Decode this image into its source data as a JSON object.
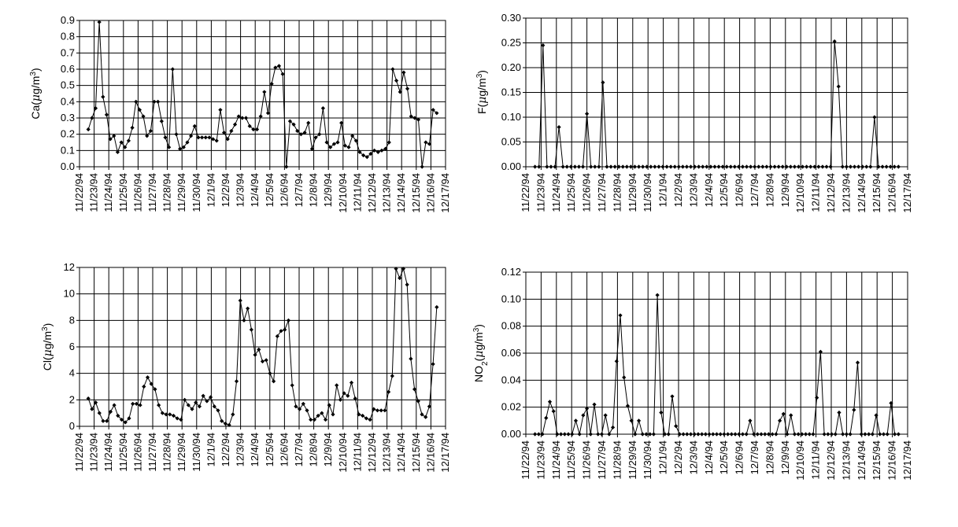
{
  "chart_data": [
    {
      "type": "line",
      "ylabel_main": "Ca(",
      "ylabel_mu": "μ",
      "ylabel_unit": "g/m",
      "ylabel_sup": "3",
      "ylabel_sub": "",
      "ylabel_close": ")",
      "ylim": [
        0,
        0.9
      ],
      "yticks": [
        "0.0",
        "0.1",
        "0.2",
        "0.3",
        "0.4",
        "0.5",
        "0.6",
        "0.7",
        "0.8",
        "0.9"
      ],
      "xticks": [
        "11/22/94",
        "11/23/94",
        "11/24/94",
        "11/25/94",
        "11/26/94",
        "11/27/94",
        "11/28/94",
        "11/29/94",
        "11/30/94",
        "12/1/94",
        "12/2/94",
        "12/3/94",
        "12/4/94",
        "12/5/94",
        "12/6/94",
        "12/7/94",
        "12/8/94",
        "12/9/94",
        "12/10/94",
        "12/11/94",
        "12/12/94",
        "12/13/94",
        "12/14/94",
        "12/15/94",
        "12/16/94",
        "12/17/94"
      ],
      "grid": "on",
      "values": [
        0.23,
        0.3,
        0.36,
        0.89,
        0.43,
        0.32,
        0.17,
        0.19,
        0.09,
        0.15,
        0.12,
        0.16,
        0.24,
        0.4,
        0.35,
        0.31,
        0.19,
        0.22,
        0.4,
        0.4,
        0.28,
        0.18,
        0.12,
        0.6,
        0.2,
        0.11,
        0.12,
        0.15,
        0.19,
        0.25,
        0.18,
        0.18,
        0.18,
        0.18,
        0.17,
        0.16,
        0.35,
        0.21,
        0.17,
        0.22,
        0.26,
        0.31,
        0.3,
        0.3,
        0.25,
        0.23,
        0.23,
        0.31,
        0.46,
        0.33,
        0.51,
        0.61,
        0.62,
        0.57,
        0.0,
        0.28,
        0.26,
        0.22,
        0.2,
        0.21,
        0.27,
        0.11,
        0.18,
        0.2,
        0.36,
        0.15,
        0.12,
        0.14,
        0.15,
        0.27,
        0.13,
        0.12,
        0.19,
        0.16,
        0.09,
        0.07,
        0.06,
        0.08,
        0.1,
        0.09,
        0.1,
        0.11,
        0.15,
        0.6,
        0.53,
        0.46,
        0.58,
        0.48,
        0.31,
        0.3,
        0.29,
        0.0,
        0.15,
        0.14,
        0.35,
        0.33
      ]
    },
    {
      "type": "line",
      "ylabel_main": "F(",
      "ylabel_mu": "μ",
      "ylabel_unit": "g/m",
      "ylabel_sup": "3",
      "ylabel_sub": "",
      "ylabel_close": ")",
      "ylim": [
        0,
        0.3
      ],
      "yticks": [
        "0.00",
        "0.05",
        "0.10",
        "0.15",
        "0.20",
        "0.25",
        "0.30"
      ],
      "xticks": [
        "11/22/94",
        "11/23/94",
        "11/24/94",
        "11/25/94",
        "11/26/94",
        "11/27/94",
        "11/28/94",
        "11/29/94",
        "11/30/94",
        "12/1/94",
        "12/2/94",
        "12/3/94",
        "12/4/94",
        "12/5/94",
        "12/6/94",
        "12/7/94",
        "12/8/94",
        "12/9/94",
        "12/10/94",
        "12/11/94",
        "12/12/94",
        "12/13/94",
        "12/14/94",
        "12/15/94",
        "12/16/94",
        "12/17/94"
      ],
      "grid": "on",
      "values": [
        0,
        0,
        0.245,
        0,
        0,
        0,
        0.08,
        0,
        0,
        0,
        0,
        0,
        0,
        0.107,
        0,
        0,
        0,
        0.17,
        0,
        0,
        0,
        0,
        0,
        0,
        0,
        0,
        0,
        0,
        0,
        0,
        0,
        0,
        0,
        0,
        0,
        0,
        0,
        0,
        0,
        0,
        0,
        0,
        0,
        0,
        0,
        0,
        0,
        0,
        0,
        0,
        0,
        0,
        0,
        0,
        0,
        0,
        0,
        0,
        0,
        0,
        0,
        0,
        0,
        0,
        0,
        0,
        0,
        0,
        0,
        0,
        0,
        0,
        0,
        0,
        0,
        0.253,
        0.162,
        0,
        0,
        0,
        0,
        0,
        0,
        0,
        0,
        0.1,
        0,
        0,
        0,
        0,
        0,
        0
      ]
    },
    {
      "type": "line",
      "ylabel_main": "Cl(",
      "ylabel_mu": "μ",
      "ylabel_unit": "g/m",
      "ylabel_sup": "3",
      "ylabel_sub": "",
      "ylabel_close": ")",
      "ylim": [
        0,
        12
      ],
      "yticks": [
        "0",
        "2",
        "4",
        "6",
        "8",
        "10",
        "12"
      ],
      "xticks": [
        "11/22/94",
        "11/23/94",
        "11/24/94",
        "11/25/94",
        "11/26/94",
        "11/27/94",
        "11/28/94",
        "11/29/94",
        "11/30/94",
        "12/1/94",
        "12/2/94",
        "12/3/94",
        "12/4/94",
        "12/5/94",
        "12/6/94",
        "12/7/94",
        "12/8/94",
        "12/9/94",
        "12/10/94",
        "12/11/94",
        "12/12/94",
        "12/13/94",
        "12/14/94",
        "12/15/94",
        "12/16/94",
        "12/17/94"
      ],
      "grid": "on",
      "values": [
        2.1,
        1.3,
        1.8,
        1.0,
        0.4,
        0.4,
        1.1,
        1.6,
        0.8,
        0.5,
        0.3,
        0.6,
        1.7,
        1.7,
        1.6,
        3.0,
        3.7,
        3.2,
        2.8,
        1.6,
        1.0,
        0.9,
        0.9,
        0.8,
        0.6,
        0.5,
        2.0,
        1.6,
        1.3,
        1.8,
        1.5,
        2.3,
        1.9,
        2.2,
        1.5,
        1.2,
        0.4,
        0.2,
        0.1,
        0.9,
        3.4,
        9.5,
        8.0,
        8.9,
        7.3,
        5.4,
        5.8,
        4.9,
        5.0,
        4.0,
        3.4,
        6.8,
        7.2,
        7.3,
        8.0,
        3.1,
        1.5,
        1.3,
        1.7,
        1.2,
        0.5,
        0.5,
        0.8,
        1.0,
        0.5,
        1.6,
        0.9,
        3.1,
        2.0,
        2.5,
        2.3,
        3.3,
        2.1,
        0.9,
        0.8,
        0.6,
        0.5,
        1.3,
        1.2,
        1.2,
        1.2,
        2.6,
        3.8,
        11.9,
        11.2,
        11.9,
        10.7,
        5.1,
        2.8,
        1.9,
        0.9,
        0.7,
        1.5,
        4.7,
        9.0
      ]
    },
    {
      "type": "line",
      "ylabel_main": "NO",
      "ylabel_mu": "μ",
      "ylabel_unit": "g/m",
      "ylabel_sup": "3",
      "ylabel_sub": "2",
      "ylabel_close": ")",
      "ylim": [
        0,
        0.12
      ],
      "yticks": [
        "0.00",
        "0.02",
        "0.04",
        "0.06",
        "0.08",
        "0.10",
        "0.12"
      ],
      "xticks": [
        "11/22/94",
        "11/23/94",
        "11/24/94",
        "11/25/94",
        "11/26/94",
        "11/27/94",
        "11/28/94",
        "11/29/94",
        "11/30/94",
        "12/1/94",
        "12/2/94",
        "12/3/94",
        "12/4/94",
        "12/5/94",
        "12/6/94",
        "12/7/94",
        "12/8/94",
        "12/9/94",
        "12/10/94",
        "12/11/94",
        "12/12/94",
        "12/13/94",
        "12/14/94",
        "12/15/94",
        "12/16/94",
        "12/17/94"
      ],
      "grid": "on",
      "values": [
        0,
        0,
        0,
        0.012,
        0.024,
        0.017,
        0,
        0,
        0,
        0,
        0,
        0.01,
        0,
        0.014,
        0.019,
        0,
        0.022,
        0,
        0,
        0.014,
        0,
        0.005,
        0.054,
        0.088,
        0.042,
        0.021,
        0.01,
        0,
        0.01,
        0,
        0,
        0,
        0,
        0.103,
        0.016,
        0,
        0,
        0.028,
        0.006,
        0,
        0,
        0,
        0,
        0,
        0,
        0,
        0,
        0,
        0,
        0,
        0,
        0,
        0,
        0,
        0,
        0,
        0,
        0,
        0.01,
        0,
        0,
        0,
        0,
        0,
        0,
        0,
        0.01,
        0.015,
        0,
        0.014,
        0,
        0,
        0,
        0,
        0,
        0,
        0.027,
        0.061,
        0,
        0,
        0,
        0,
        0.016,
        0,
        0,
        0,
        0.018,
        0.053,
        0,
        0,
        0,
        0,
        0.014,
        0,
        0,
        0,
        0.023,
        0,
        0
      ]
    }
  ]
}
